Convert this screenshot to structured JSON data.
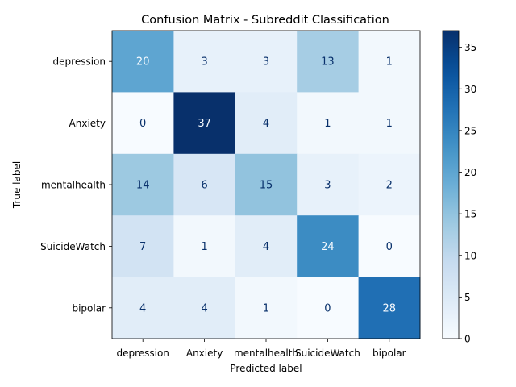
{
  "chart_data": {
    "type": "heatmap",
    "title": "Confusion Matrix - Subreddit Classification",
    "xlabel": "Predicted label",
    "ylabel": "True label",
    "x_categories": [
      "depression",
      "Anxiety",
      "mentalhealth",
      "SuicideWatch",
      "bipolar"
    ],
    "y_categories": [
      "depression",
      "Anxiety",
      "mentalhealth",
      "SuicideWatch",
      "bipolar"
    ],
    "values": [
      [
        20,
        3,
        3,
        13,
        1
      ],
      [
        0,
        37,
        4,
        1,
        1
      ],
      [
        14,
        6,
        15,
        3,
        2
      ],
      [
        7,
        1,
        4,
        24,
        0
      ],
      [
        4,
        4,
        1,
        0,
        28
      ]
    ],
    "colorbar": {
      "min": 0,
      "max": 37,
      "ticks": [
        0,
        5,
        10,
        15,
        20,
        25,
        30,
        35
      ]
    },
    "colormap": "Blues",
    "colors": {
      "low": "#f7fbff",
      "high": "#08306b",
      "text_dark": "#08306b",
      "text_light": "#f7fbff"
    },
    "grid": false
  }
}
